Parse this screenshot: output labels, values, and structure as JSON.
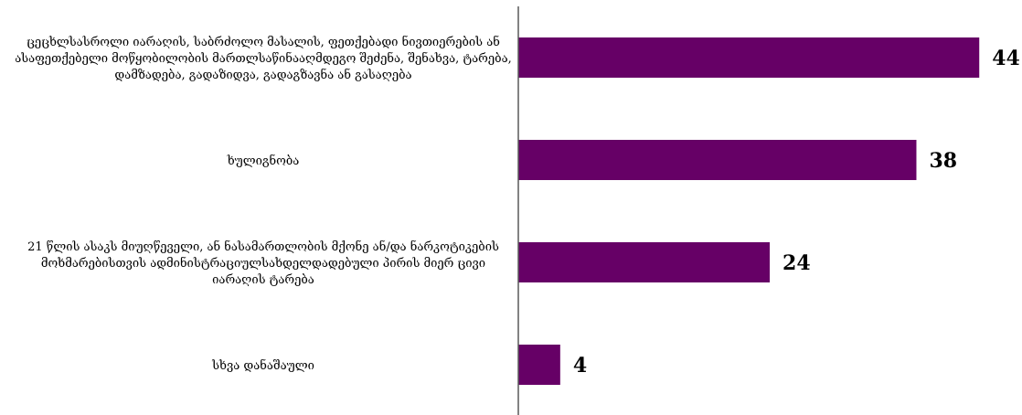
{
  "chart_data": {
    "type": "bar",
    "orientation": "horizontal",
    "categories": [
      [
        "ცეცხლსასროლი იარაღის, საბრძოლო მასალის, ფეთქებადი ნივთიერების ან",
        "ასაფეთქებელი მოწყობილობის მართლსაწინააღმდეგო შეძენა, შენახვა, ტარება,",
        "დამზადება, გადაზიდვა, გადაგზავნა ან გასაღება"
      ],
      [
        "ხულიგნობა"
      ],
      [
        "21 წლის ასაკს მიუღწეველი, ან ნასამართლობის მქონე ან/და ნარკოტიკების",
        "მოხმარებისთვის ადმინისტრაციულსახდელდადებული პირის მიერ ცივი",
        "იარაღის ტარება"
      ],
      [
        "სხვა დანაშაული"
      ]
    ],
    "values": [
      44,
      38,
      24,
      4
    ],
    "xlim": [
      0,
      50
    ],
    "bar_color": "#660066",
    "axis_color": "#595959",
    "grid": false,
    "legend": "none"
  }
}
